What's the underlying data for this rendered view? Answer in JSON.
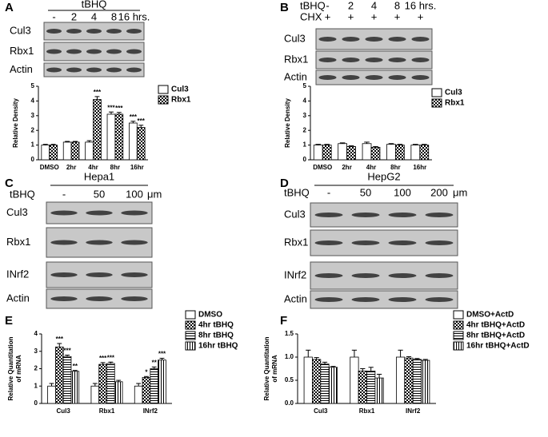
{
  "panel_labels": [
    "A",
    "B",
    "C",
    "D",
    "E",
    "F"
  ],
  "blots": [
    {
      "title": "tBHQ",
      "lanes": [
        "-",
        "2",
        "4",
        "8",
        "16 hrs."
      ],
      "rows": [
        "Cul3",
        "Rbx1",
        "Actin"
      ]
    },
    {
      "lane_rows": [
        {
          "label": "tBHQ",
          "lanes": [
            "-",
            "2",
            "4",
            "8",
            "16 hrs."
          ]
        },
        {
          "label": "CHX",
          "lanes": [
            "+",
            "+",
            "+",
            "+",
            "+"
          ]
        }
      ],
      "rows": [
        "Cul3",
        "Rbx1",
        "Actin"
      ]
    },
    {
      "title": "Hepa1",
      "treatment": "tBHQ",
      "lanes": [
        "-",
        "50",
        "100"
      ],
      "unit": "μm",
      "rows": [
        "Cul3",
        "Rbx1",
        "INrf2",
        "Actin"
      ]
    },
    {
      "title": "HepG2",
      "treatment": "tBHQ",
      "lanes": [
        "-",
        "50",
        "100",
        "200"
      ],
      "unit": "μm",
      "rows": [
        "Cul3",
        "Rbx1",
        "INrf2",
        "Actin"
      ]
    }
  ],
  "chart_data": [
    {
      "type": "bar",
      "ylabel": "Relative Density",
      "categories": [
        "DMSO",
        "2hr",
        "4hr",
        "8hr",
        "16hr"
      ],
      "ylim": [
        0,
        5
      ],
      "yticks": [
        0,
        1,
        2,
        3,
        4,
        5
      ],
      "series": [
        {
          "name": "Cul3",
          "color": "#000000",
          "pattern": "none",
          "values": [
            1.0,
            1.2,
            1.2,
            3.1,
            2.5
          ],
          "errors": [
            0.05,
            0.05,
            0.1,
            0.15,
            0.12
          ],
          "significance": [
            null,
            null,
            null,
            "***",
            "***"
          ]
        },
        {
          "name": "Rbx1",
          "color": "#000000",
          "pattern": "checker",
          "values": [
            1.0,
            1.2,
            4.1,
            3.1,
            2.2
          ],
          "errors": [
            0.05,
            0.05,
            0.2,
            0.12,
            0.15
          ],
          "significance": [
            null,
            null,
            "***",
            "***",
            "***"
          ]
        }
      ]
    },
    {
      "type": "bar",
      "ylabel": "Relative Density",
      "categories": [
        "DMSO",
        "2hr",
        "4hr",
        "8hr",
        "16hr"
      ],
      "ylim": [
        0,
        5
      ],
      "yticks": [
        0,
        1,
        2,
        3,
        4,
        5
      ],
      "series": [
        {
          "name": "Cul3",
          "color": "#000000",
          "pattern": "none",
          "values": [
            1.0,
            1.1,
            1.1,
            1.05,
            1.0
          ],
          "errors": [
            0.05,
            0.05,
            0.1,
            0.05,
            0.05
          ]
        },
        {
          "name": "Rbx1",
          "color": "#000000",
          "pattern": "checker",
          "values": [
            1.0,
            0.9,
            0.85,
            1.0,
            1.0
          ],
          "errors": [
            0.05,
            0.05,
            0.05,
            0.05,
            0.05
          ]
        }
      ]
    },
    {
      "type": "bar",
      "ylabel": [
        "Relative Quantitation",
        "of mRNA"
      ],
      "categories": [
        "Cul3",
        "Rbx1",
        "INrf2"
      ],
      "ylim": [
        0,
        4
      ],
      "yticks": [
        0,
        1,
        2,
        3,
        4
      ],
      "series": [
        {
          "name": "DMSO",
          "color": "#000000",
          "pattern": "none",
          "values": [
            1.0,
            1.0,
            1.0
          ],
          "errors": [
            0.15,
            0.15,
            0.15
          ]
        },
        {
          "name": "4hr tBHQ",
          "color": "#000000",
          "pattern": "checker",
          "values": [
            3.25,
            2.25,
            1.5
          ],
          "errors": [
            0.2,
            0.1,
            0.05
          ],
          "significance": [
            "***",
            "***",
            "*"
          ]
        },
        {
          "name": "8hr tBHQ",
          "color": "#000000",
          "pattern": "hstripe",
          "values": [
            2.7,
            2.3,
            2.0
          ],
          "errors": [
            0.08,
            0.08,
            0.1
          ],
          "significance": [
            "***",
            "***",
            "**"
          ]
        },
        {
          "name": "16hr tBHQ",
          "color": "#000000",
          "pattern": "vstripe",
          "values": [
            1.85,
            1.25,
            2.5
          ],
          "errors": [
            0.05,
            0.08,
            0.1
          ],
          "significance": [
            "**",
            null,
            "***"
          ]
        }
      ]
    },
    {
      "type": "bar",
      "ylabel": [
        "Relative Quantitation",
        "of mRNA"
      ],
      "categories": [
        "Cul3",
        "Rbx1",
        "INrf2"
      ],
      "ylim": [
        0,
        1.5
      ],
      "yticks": [
        {
          "value": 0,
          "label": "0.0"
        },
        {
          "value": 0.5,
          "label": "0.5"
        },
        {
          "value": 1,
          "label": "1.0"
        },
        {
          "value": 1.5,
          "label": "1.5"
        }
      ],
      "series": [
        {
          "name": "DMSO+ActD",
          "color": "#000000",
          "pattern": "none",
          "values": [
            1.0,
            1.0,
            1.0
          ],
          "errors": [
            0.15,
            0.15,
            0.15
          ]
        },
        {
          "name": "4hr tBHQ+ActD",
          "color": "#000000",
          "pattern": "checker",
          "values": [
            0.95,
            0.7,
            0.98
          ],
          "errors": [
            0.04,
            0.05,
            0.03
          ]
        },
        {
          "name": "8hr tBHQ+ActD",
          "color": "#000000",
          "pattern": "hstripe",
          "values": [
            0.85,
            0.7,
            0.95
          ],
          "errors": [
            0.04,
            0.08,
            0.02
          ]
        },
        {
          "name": "16hr tBHQ+ActD",
          "color": "#000000",
          "pattern": "vstripe",
          "values": [
            0.78,
            0.55,
            0.93
          ],
          "errors": [
            0.02,
            0.08,
            0.02
          ]
        }
      ]
    }
  ]
}
